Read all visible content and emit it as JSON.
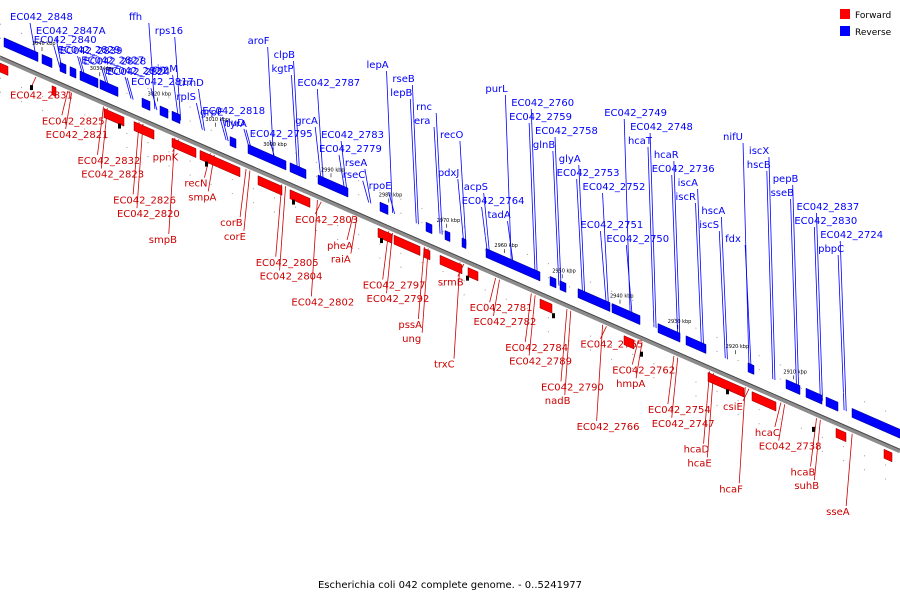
{
  "caption": "Escherichia coli 042 complete genome. - 0..5241977",
  "legend": {
    "forward": {
      "label": "Forward",
      "color": "#ff0000"
    },
    "reverse": {
      "label": "Reverse",
      "color": "#0000ff"
    }
  },
  "ticks": [
    "3040 kbp",
    "3030 kbp",
    "3020 kbp",
    "3010 kbp",
    "3000 kbp",
    "2990 kbp",
    "2980 kbp",
    "2970 kbp",
    "2960 kbp",
    "2950 kbp",
    "2940 kbp",
    "2930 kbp",
    "2920 kbp",
    "2910 kbp"
  ],
  "reverse_labels": [
    "EC042_2848",
    "EC042_2847A",
    "EC042_2840",
    "EC042_2839",
    "EC042_2829",
    "EC042_2828",
    "EC042_2827",
    "EC042_2824",
    "EC042_2822",
    "EC042_2817",
    "ffh",
    "rps16",
    "rimM",
    "trmD",
    "rplS",
    "EC042_2818",
    "grpE",
    "tyrA",
    "rluD",
    "EC042_2795",
    "aroF",
    "clpB",
    "kgtP",
    "EC042_2787",
    "grcA",
    "EC042_2783",
    "EC042_2779",
    "rseA",
    "rseC",
    "rpoE",
    "lepA",
    "rseB",
    "lepB",
    "rnc",
    "era",
    "recO",
    "pdxJ",
    "acpS",
    "EC042_2764",
    "tadA",
    "purL",
    "EC042_2760",
    "EC042_2759",
    "EC042_2758",
    "glnB",
    "glyA",
    "EC042_2753",
    "EC042_2752",
    "EC042_2751",
    "EC042_2750",
    "EC042_2749",
    "EC042_2748",
    "hcaT",
    "hcaR",
    "EC042_2736",
    "iscA",
    "iscR",
    "hscA",
    "iscS",
    "fdx",
    "nifU",
    "iscX",
    "hscB",
    "pepB",
    "sseB",
    "EC042_2837",
    "EC042_2830",
    "EC042_2724",
    "pbpC"
  ],
  "forward_labels": [
    "EC042_2831",
    "EC042_2825",
    "EC042_2821",
    "EC042_2832",
    "EC042_2823",
    "EC042_2826",
    "EC042_2820",
    "smpB",
    "ppnK",
    "recN",
    "smpA",
    "corB",
    "corE",
    "EC042_2805",
    "EC042_2804",
    "EC042_2802",
    "EC042_2803",
    "pheA",
    "raiA",
    "EC042_2797",
    "EC042_2792",
    "pssA",
    "ung",
    "trxC",
    "srmB",
    "EC042_2781",
    "EC042_2782",
    "EC042_2784",
    "EC042_2789",
    "EC042_2790",
    "nadB",
    "EC042_2766",
    "EC042_2765",
    "EC042_2762",
    "hmpA",
    "EC042_2754",
    "EC042_2747",
    "hcaD",
    "hcaE",
    "hcaF",
    "csiE",
    "hcaC",
    "EC042_2738",
    "hcaB",
    "suhB",
    "sseA"
  ]
}
